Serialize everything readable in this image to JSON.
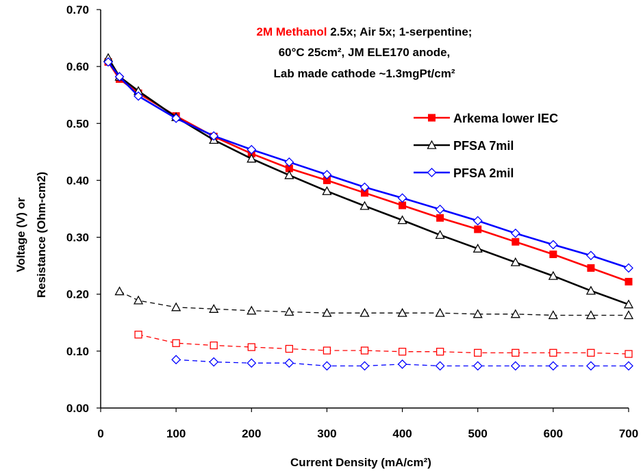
{
  "chart_data": {
    "type": "line",
    "title_lines": [
      {
        "highlight": "2M Methanol",
        "rest": " 2.5x; Air 5x; 1-serpentine;"
      },
      {
        "highlight": "",
        "rest": "60°C 25cm², JM ELE170 anode,"
      },
      {
        "highlight": "",
        "rest": "Lab made cathode ~1.3mgPt/cm²"
      }
    ],
    "xlabel": "Current Density (mA/cm²)",
    "ylabel_lines": [
      "Voltage (V) or",
      "Resistance (Ohm-cm2)"
    ],
    "xlim": [
      0,
      700
    ],
    "ylim": [
      0,
      0.7
    ],
    "xticks": [
      "0",
      "100",
      "200",
      "300",
      "400",
      "500",
      "600",
      "700"
    ],
    "yticks": [
      "0.00",
      "0.10",
      "0.20",
      "0.30",
      "0.40",
      "0.50",
      "0.60",
      "0.70"
    ],
    "legend_position": "right",
    "series": [
      {
        "name": "Arkema lower IEC",
        "color": "#ff0000",
        "marker": "filled-square",
        "line": "solid",
        "x": [
          10,
          25,
          50,
          100,
          150,
          200,
          250,
          300,
          350,
          400,
          450,
          500,
          550,
          600,
          650,
          700
        ],
        "values": [
          0.608,
          0.578,
          0.553,
          0.513,
          0.477,
          0.447,
          0.421,
          0.4,
          0.378,
          0.356,
          0.334,
          0.314,
          0.292,
          0.27,
          0.246,
          0.222
        ]
      },
      {
        "name": "PFSA 7mil",
        "color": "#000000",
        "marker": "open-triangle",
        "line": "solid",
        "x": [
          10,
          25,
          50,
          100,
          150,
          200,
          250,
          300,
          350,
          400,
          450,
          500,
          550,
          600,
          650,
          700
        ],
        "values": [
          0.615,
          0.582,
          0.557,
          0.511,
          0.471,
          0.438,
          0.409,
          0.381,
          0.355,
          0.33,
          0.304,
          0.28,
          0.256,
          0.232,
          0.206,
          0.182
        ]
      },
      {
        "name": "PFSA 2mil",
        "color": "#0000ff",
        "marker": "open-diamond",
        "line": "solid",
        "x": [
          10,
          25,
          50,
          100,
          150,
          200,
          250,
          300,
          350,
          400,
          450,
          500,
          550,
          600,
          650,
          700
        ],
        "values": [
          0.608,
          0.582,
          0.548,
          0.509,
          0.478,
          0.454,
          0.432,
          0.41,
          0.388,
          0.369,
          0.349,
          0.329,
          0.307,
          0.287,
          0.268,
          0.246
        ]
      },
      {
        "name": "",
        "color": "#000000",
        "marker": "open-triangle",
        "line": "dashed",
        "x": [
          25,
          50,
          100,
          150,
          200,
          250,
          300,
          350,
          400,
          450,
          500,
          550,
          600,
          650,
          700
        ],
        "values": [
          0.205,
          0.189,
          0.177,
          0.174,
          0.171,
          0.169,
          0.167,
          0.167,
          0.167,
          0.167,
          0.165,
          0.165,
          0.163,
          0.163,
          0.163
        ]
      },
      {
        "name": "",
        "color": "#ff0000",
        "marker": "open-square",
        "line": "dashed",
        "x": [
          50,
          100,
          150,
          200,
          250,
          300,
          350,
          400,
          450,
          500,
          550,
          600,
          650,
          700
        ],
        "values": [
          0.129,
          0.114,
          0.11,
          0.107,
          0.104,
          0.101,
          0.101,
          0.099,
          0.099,
          0.097,
          0.097,
          0.097,
          0.097,
          0.095
        ]
      },
      {
        "name": "",
        "color": "#0000ff",
        "marker": "open-diamond",
        "line": "dashed",
        "x": [
          100,
          150,
          200,
          250,
          300,
          350,
          400,
          450,
          500,
          550,
          600,
          650,
          700
        ],
        "values": [
          0.085,
          0.081,
          0.079,
          0.079,
          0.074,
          0.074,
          0.077,
          0.074,
          0.074,
          0.074,
          0.074,
          0.074,
          0.074
        ]
      }
    ]
  }
}
